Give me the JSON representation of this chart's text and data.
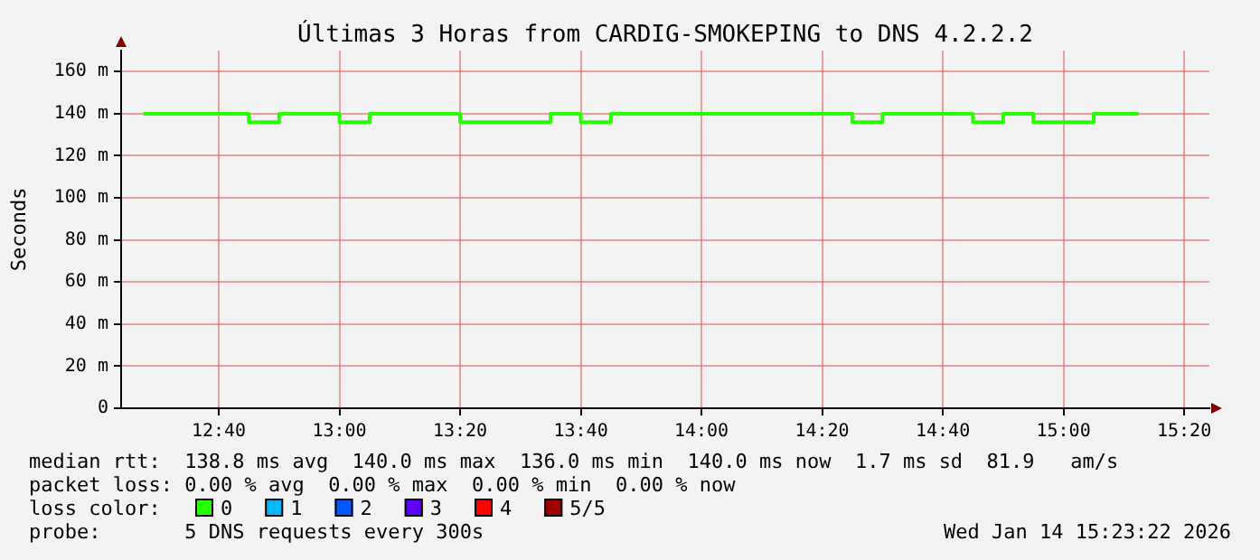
{
  "chart_data": {
    "type": "step",
    "title": "Últimas 3 Horas from CARDIG-SMOKEPING to DNS 4.2.2.2",
    "ylabel": "Seconds",
    "x": [
      12.4583,
      12.5417,
      12.625,
      12.7083,
      12.7917,
      12.875,
      12.9583,
      13.0417,
      13.125,
      13.2083,
      13.2917,
      13.375,
      13.4583,
      13.5417,
      13.625,
      13.7083,
      13.7917,
      13.875,
      13.9583,
      14.0417,
      14.125,
      14.2083,
      14.2917,
      14.375,
      14.4583,
      14.5417,
      14.625,
      14.7083,
      14.7917,
      14.875,
      14.9583,
      15.0417,
      15.125,
      15.2083
    ],
    "series": [
      {
        "name": "0",
        "color": "#26ff00",
        "values": [
          140,
          140,
          140,
          140,
          136,
          140,
          140,
          136,
          140,
          140,
          140,
          136,
          136,
          136,
          140,
          136,
          140,
          140,
          140,
          140,
          140,
          140,
          140,
          140,
          136,
          140,
          140,
          140,
          136,
          140,
          136,
          136,
          140,
          140
        ]
      },
      {
        "name": "1",
        "color": "#00b8ff",
        "values": [
          null,
          null,
          null,
          null,
          null,
          null,
          null,
          null,
          null,
          null,
          null,
          null,
          null,
          null,
          null,
          null,
          null,
          null,
          null,
          null,
          null,
          null,
          null,
          null,
          null,
          null,
          null,
          null,
          null,
          null,
          null,
          null,
          null,
          null
        ]
      },
      {
        "name": "2",
        "color": "#0059ff",
        "values": [
          null,
          null,
          null,
          null,
          null,
          null,
          null,
          null,
          null,
          null,
          null,
          null,
          null,
          null,
          null,
          null,
          null,
          null,
          null,
          null,
          null,
          null,
          null,
          null,
          null,
          null,
          null,
          null,
          null,
          null,
          null,
          null,
          null,
          null
        ]
      },
      {
        "name": "3",
        "color": "#5e00ff",
        "values": [
          null,
          null,
          null,
          null,
          null,
          null,
          null,
          null,
          null,
          null,
          null,
          null,
          null,
          null,
          null,
          null,
          null,
          null,
          null,
          null,
          null,
          null,
          null,
          null,
          null,
          null,
          null,
          null,
          null,
          null,
          null,
          null,
          null,
          null
        ]
      },
      {
        "name": "4",
        "color": "#ff0000",
        "values": [
          null,
          null,
          null,
          null,
          null,
          null,
          null,
          null,
          null,
          null,
          null,
          null,
          null,
          null,
          null,
          null,
          null,
          null,
          null,
          null,
          null,
          null,
          null,
          null,
          null,
          null,
          null,
          null,
          null,
          null,
          null,
          null,
          null,
          null
        ]
      },
      {
        "name": "5/5",
        "color": "#a10000",
        "values": [
          null,
          null,
          null,
          null,
          null,
          null,
          null,
          null,
          null,
          null,
          null,
          null,
          null,
          null,
          null,
          null,
          null,
          null,
          null,
          null,
          null,
          null,
          null,
          null,
          null,
          null,
          null,
          null,
          null,
          null,
          null,
          null,
          null,
          null
        ]
      }
    ],
    "legend_title": "loss color:",
    "legend": "bottom",
    "xlim": [
      12.397,
      15.403
    ],
    "xticks": [
      {
        "value": 12.6667,
        "label": "12:40"
      },
      {
        "value": 13,
        "label": "13:00"
      },
      {
        "value": 13.3333,
        "label": "13:20"
      },
      {
        "value": 13.6667,
        "label": "13:40"
      },
      {
        "value": 14,
        "label": "14:00"
      },
      {
        "value": 14.3333,
        "label": "14:20"
      },
      {
        "value": 14.6667,
        "label": "14:40"
      },
      {
        "value": 15,
        "label": "15:00"
      },
      {
        "value": 15.3333,
        "label": "15:20"
      }
    ],
    "ylim": [
      0,
      170
    ],
    "yticks": [
      0,
      {
        "value": 20,
        "label": "20 m"
      },
      {
        "value": 40,
        "label": "40 m"
      },
      {
        "value": 60,
        "label": "60 m"
      },
      {
        "value": 80,
        "label": "80 m"
      },
      {
        "value": 100,
        "label": "100 m"
      },
      {
        "value": 120,
        "label": "120 m"
      },
      {
        "value": 140,
        "label": "140 m"
      },
      {
        "value": 160,
        "label": "160 m"
      }
    ],
    "grid": true,
    "annotations": [
      "median rtt:  138.8 ms avg  140.0 ms max  136.0 ms min  140.0 ms now  1.7 ms sd  81.9   am/s",
      "packet loss: 0.00 % avg  0.00 % max  0.00 % min  0.00 % now",
      "probe:       5 DNS requests every 300s",
      "Wed Jan 14 15:23:22 2026"
    ]
  }
}
